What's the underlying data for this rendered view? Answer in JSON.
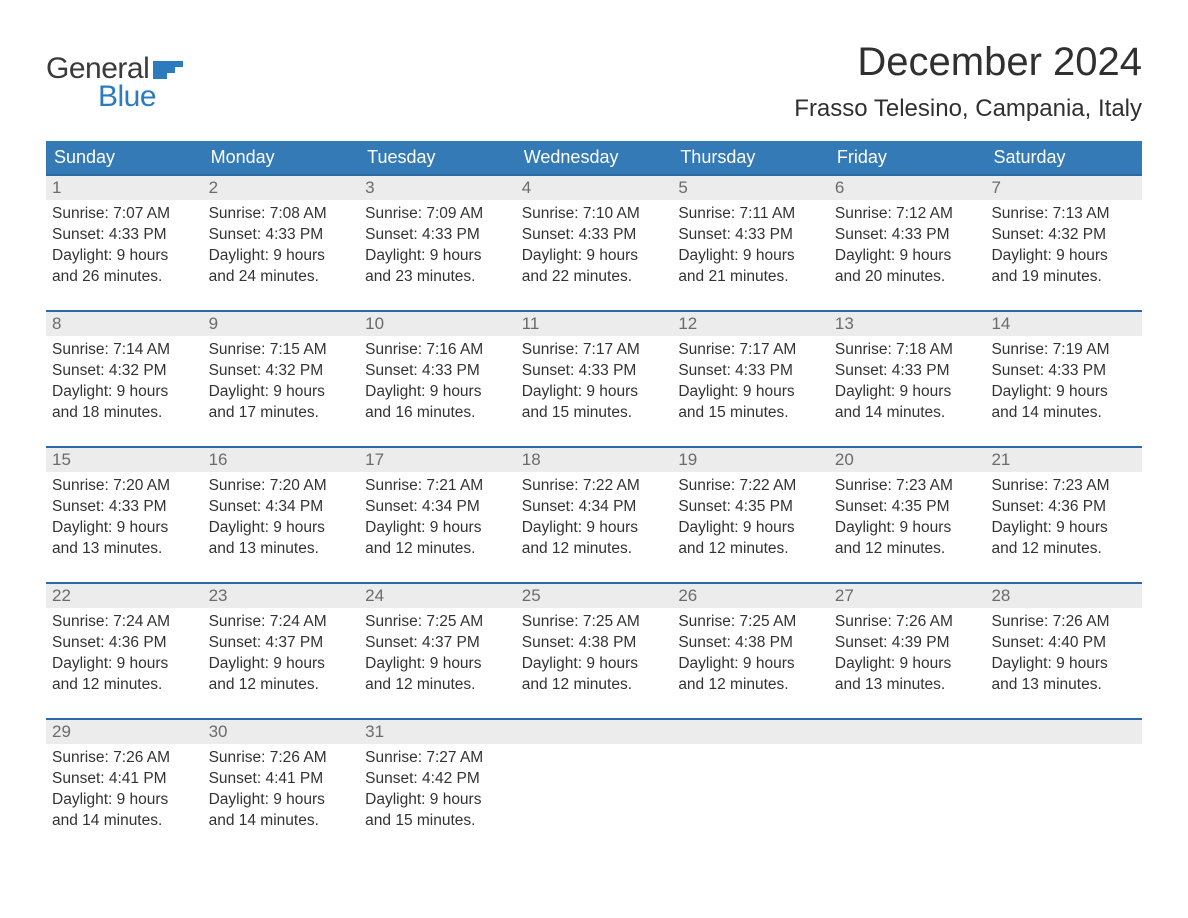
{
  "logo": {
    "word1": "General",
    "word2": "Blue",
    "word1_color": "#3a3a3a",
    "word2_color": "#2b7bbd",
    "flag_color": "#2b7bbd"
  },
  "title": "December 2024",
  "location": "Frasso Telesino, Campania, Italy",
  "colors": {
    "header_bg": "#337ab7",
    "header_text": "#ffffff",
    "week_border": "#2b6aa3",
    "daynum_bg": "#ececec",
    "daynum_text": "#6b6b6b",
    "body_text": "#333333",
    "page_bg": "#ffffff"
  },
  "typography": {
    "title_fontsize": 40,
    "location_fontsize": 24,
    "dow_fontsize": 18,
    "daynum_fontsize": 17,
    "body_fontsize": 15.5,
    "font_family": "Arial"
  },
  "days_of_week": [
    "Sunday",
    "Monday",
    "Tuesday",
    "Wednesday",
    "Thursday",
    "Friday",
    "Saturday"
  ],
  "weeks": [
    [
      {
        "n": "1",
        "sunrise": "Sunrise: 7:07 AM",
        "sunset": "Sunset: 4:33 PM",
        "day1": "Daylight: 9 hours",
        "day2": "and 26 minutes."
      },
      {
        "n": "2",
        "sunrise": "Sunrise: 7:08 AM",
        "sunset": "Sunset: 4:33 PM",
        "day1": "Daylight: 9 hours",
        "day2": "and 24 minutes."
      },
      {
        "n": "3",
        "sunrise": "Sunrise: 7:09 AM",
        "sunset": "Sunset: 4:33 PM",
        "day1": "Daylight: 9 hours",
        "day2": "and 23 minutes."
      },
      {
        "n": "4",
        "sunrise": "Sunrise: 7:10 AM",
        "sunset": "Sunset: 4:33 PM",
        "day1": "Daylight: 9 hours",
        "day2": "and 22 minutes."
      },
      {
        "n": "5",
        "sunrise": "Sunrise: 7:11 AM",
        "sunset": "Sunset: 4:33 PM",
        "day1": "Daylight: 9 hours",
        "day2": "and 21 minutes."
      },
      {
        "n": "6",
        "sunrise": "Sunrise: 7:12 AM",
        "sunset": "Sunset: 4:33 PM",
        "day1": "Daylight: 9 hours",
        "day2": "and 20 minutes."
      },
      {
        "n": "7",
        "sunrise": "Sunrise: 7:13 AM",
        "sunset": "Sunset: 4:32 PM",
        "day1": "Daylight: 9 hours",
        "day2": "and 19 minutes."
      }
    ],
    [
      {
        "n": "8",
        "sunrise": "Sunrise: 7:14 AM",
        "sunset": "Sunset: 4:32 PM",
        "day1": "Daylight: 9 hours",
        "day2": "and 18 minutes."
      },
      {
        "n": "9",
        "sunrise": "Sunrise: 7:15 AM",
        "sunset": "Sunset: 4:32 PM",
        "day1": "Daylight: 9 hours",
        "day2": "and 17 minutes."
      },
      {
        "n": "10",
        "sunrise": "Sunrise: 7:16 AM",
        "sunset": "Sunset: 4:33 PM",
        "day1": "Daylight: 9 hours",
        "day2": "and 16 minutes."
      },
      {
        "n": "11",
        "sunrise": "Sunrise: 7:17 AM",
        "sunset": "Sunset: 4:33 PM",
        "day1": "Daylight: 9 hours",
        "day2": "and 15 minutes."
      },
      {
        "n": "12",
        "sunrise": "Sunrise: 7:17 AM",
        "sunset": "Sunset: 4:33 PM",
        "day1": "Daylight: 9 hours",
        "day2": "and 15 minutes."
      },
      {
        "n": "13",
        "sunrise": "Sunrise: 7:18 AM",
        "sunset": "Sunset: 4:33 PM",
        "day1": "Daylight: 9 hours",
        "day2": "and 14 minutes."
      },
      {
        "n": "14",
        "sunrise": "Sunrise: 7:19 AM",
        "sunset": "Sunset: 4:33 PM",
        "day1": "Daylight: 9 hours",
        "day2": "and 14 minutes."
      }
    ],
    [
      {
        "n": "15",
        "sunrise": "Sunrise: 7:20 AM",
        "sunset": "Sunset: 4:33 PM",
        "day1": "Daylight: 9 hours",
        "day2": "and 13 minutes."
      },
      {
        "n": "16",
        "sunrise": "Sunrise: 7:20 AM",
        "sunset": "Sunset: 4:34 PM",
        "day1": "Daylight: 9 hours",
        "day2": "and 13 minutes."
      },
      {
        "n": "17",
        "sunrise": "Sunrise: 7:21 AM",
        "sunset": "Sunset: 4:34 PM",
        "day1": "Daylight: 9 hours",
        "day2": "and 12 minutes."
      },
      {
        "n": "18",
        "sunrise": "Sunrise: 7:22 AM",
        "sunset": "Sunset: 4:34 PM",
        "day1": "Daylight: 9 hours",
        "day2": "and 12 minutes."
      },
      {
        "n": "19",
        "sunrise": "Sunrise: 7:22 AM",
        "sunset": "Sunset: 4:35 PM",
        "day1": "Daylight: 9 hours",
        "day2": "and 12 minutes."
      },
      {
        "n": "20",
        "sunrise": "Sunrise: 7:23 AM",
        "sunset": "Sunset: 4:35 PM",
        "day1": "Daylight: 9 hours",
        "day2": "and 12 minutes."
      },
      {
        "n": "21",
        "sunrise": "Sunrise: 7:23 AM",
        "sunset": "Sunset: 4:36 PM",
        "day1": "Daylight: 9 hours",
        "day2": "and 12 minutes."
      }
    ],
    [
      {
        "n": "22",
        "sunrise": "Sunrise: 7:24 AM",
        "sunset": "Sunset: 4:36 PM",
        "day1": "Daylight: 9 hours",
        "day2": "and 12 minutes."
      },
      {
        "n": "23",
        "sunrise": "Sunrise: 7:24 AM",
        "sunset": "Sunset: 4:37 PM",
        "day1": "Daylight: 9 hours",
        "day2": "and 12 minutes."
      },
      {
        "n": "24",
        "sunrise": "Sunrise: 7:25 AM",
        "sunset": "Sunset: 4:37 PM",
        "day1": "Daylight: 9 hours",
        "day2": "and 12 minutes."
      },
      {
        "n": "25",
        "sunrise": "Sunrise: 7:25 AM",
        "sunset": "Sunset: 4:38 PM",
        "day1": "Daylight: 9 hours",
        "day2": "and 12 minutes."
      },
      {
        "n": "26",
        "sunrise": "Sunrise: 7:25 AM",
        "sunset": "Sunset: 4:38 PM",
        "day1": "Daylight: 9 hours",
        "day2": "and 12 minutes."
      },
      {
        "n": "27",
        "sunrise": "Sunrise: 7:26 AM",
        "sunset": "Sunset: 4:39 PM",
        "day1": "Daylight: 9 hours",
        "day2": "and 13 minutes."
      },
      {
        "n": "28",
        "sunrise": "Sunrise: 7:26 AM",
        "sunset": "Sunset: 4:40 PM",
        "day1": "Daylight: 9 hours",
        "day2": "and 13 minutes."
      }
    ],
    [
      {
        "n": "29",
        "sunrise": "Sunrise: 7:26 AM",
        "sunset": "Sunset: 4:41 PM",
        "day1": "Daylight: 9 hours",
        "day2": "and 14 minutes."
      },
      {
        "n": "30",
        "sunrise": "Sunrise: 7:26 AM",
        "sunset": "Sunset: 4:41 PM",
        "day1": "Daylight: 9 hours",
        "day2": "and 14 minutes."
      },
      {
        "n": "31",
        "sunrise": "Sunrise: 7:27 AM",
        "sunset": "Sunset: 4:42 PM",
        "day1": "Daylight: 9 hours",
        "day2": "and 15 minutes."
      },
      null,
      null,
      null,
      null
    ]
  ]
}
